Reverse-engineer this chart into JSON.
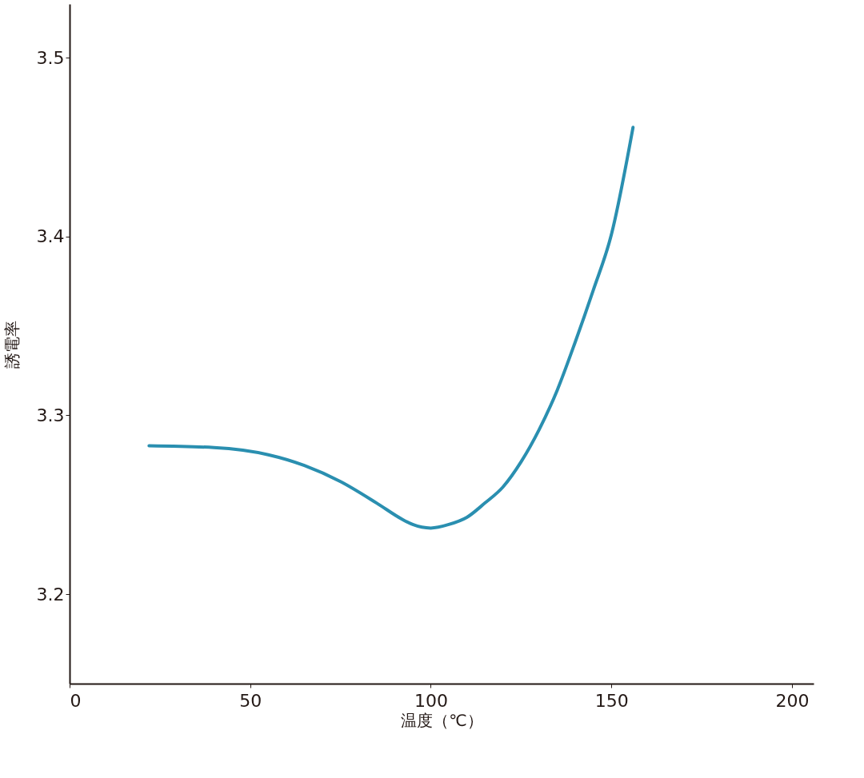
{
  "chart_data": {
    "type": "line",
    "xlabel": "温度（℃）",
    "ylabel": "誘電率",
    "x": [
      22,
      40,
      55,
      65,
      75,
      85,
      92,
      95,
      100,
      105,
      110,
      115,
      120,
      125,
      130,
      135,
      140,
      145,
      150,
      156
    ],
    "series": [
      {
        "color": "#2a8fb0",
        "values": [
          3.283,
          3.282,
          3.278,
          3.272,
          3.263,
          3.251,
          3.242,
          3.239,
          3.237,
          3.239,
          3.243,
          3.251,
          3.26,
          3.274,
          3.292,
          3.314,
          3.341,
          3.37,
          3.401,
          3.461
        ]
      }
    ],
    "xlim": [
      0,
      206
    ],
    "ylim": [
      3.15,
      3.53
    ],
    "xticks": [
      0,
      50,
      100,
      150,
      200
    ],
    "yticks": [
      3.2,
      3.3,
      3.4,
      3.5
    ],
    "grid": false,
    "marker": "none",
    "line_style": "solid"
  }
}
